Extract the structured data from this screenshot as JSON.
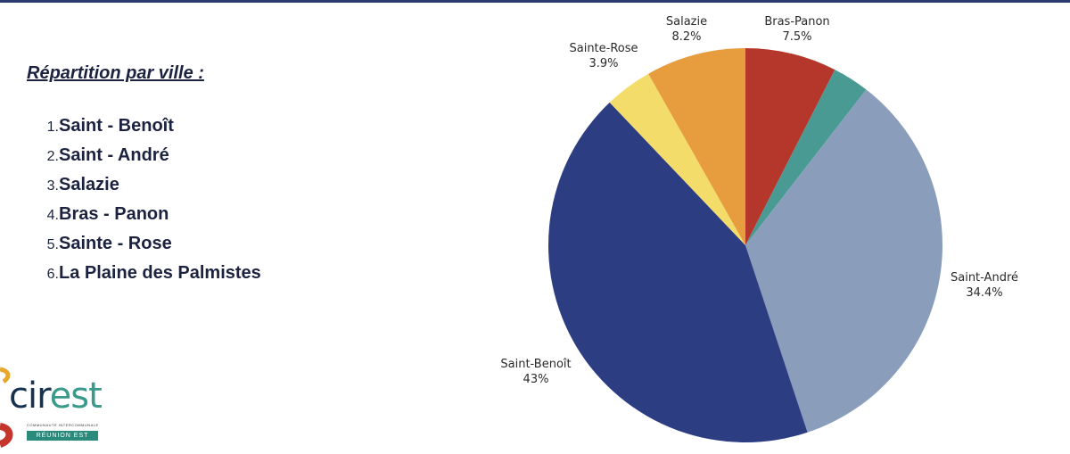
{
  "slide": {
    "heading": "Répartition par ville :",
    "ranking": [
      {
        "num": "1.",
        "label": "Saint - Benoît"
      },
      {
        "num": "2.",
        "label": "Saint - André"
      },
      {
        "num": "3.",
        "label": "Salazie"
      },
      {
        "num": "4.",
        "label": "Bras - Panon"
      },
      {
        "num": "5.",
        "label": "Sainte - Rose"
      },
      {
        "num": "6.",
        "label": "La Plaine des Palmistes"
      }
    ]
  },
  "logo": {
    "name_a": "cir",
    "name_b": "est",
    "subline": "COMMUNAUTÉ INTERCOMMUNALE",
    "band": "RÉUNION EST"
  },
  "chart_data": {
    "type": "pie",
    "title": "",
    "start": "12 o'clock, clockwise",
    "slices": [
      {
        "label": "Bras-Panon",
        "value": 7.5,
        "display": "7.5%",
        "color": "#b5372b"
      },
      {
        "label": "",
        "value": 3.0,
        "display": "",
        "color": "#4a9a94"
      },
      {
        "label": "Saint-André",
        "value": 34.4,
        "display": "34.4%",
        "color": "#8a9ebc"
      },
      {
        "label": "Saint-Benoît",
        "value": 43,
        "display": "43%",
        "color": "#2c3d82"
      },
      {
        "label": "Sainte-Rose",
        "value": 3.9,
        "display": "3.9%",
        "color": "#f3dc6a"
      },
      {
        "label": "Salazie",
        "value": 8.2,
        "display": "8.2%",
        "color": "#e79d3e"
      }
    ]
  }
}
